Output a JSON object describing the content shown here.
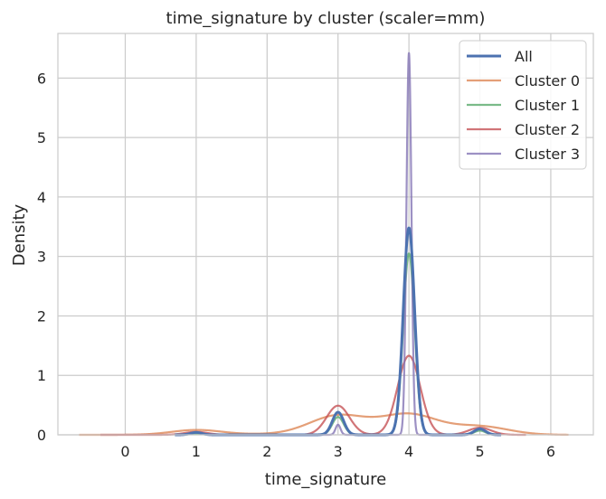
{
  "chart_data": {
    "type": "line",
    "title": "time_signature by cluster (scaler=mm)",
    "xlabel": "time_signature",
    "ylabel": "Density",
    "xlim": [
      -0.95,
      6.6
    ],
    "ylim": [
      0,
      6.75
    ],
    "xticks": [
      "0",
      "1",
      "2",
      "3",
      "4",
      "5",
      "6"
    ],
    "yticks": [
      "0",
      "1",
      "2",
      "3",
      "4",
      "5",
      "6"
    ],
    "grid": true,
    "legend_position": "top-right",
    "series": [
      {
        "name": "All",
        "color": "#4c72b0",
        "components": [
          {
            "mu": 1,
            "sigma": 0.08,
            "peak": 0.04
          },
          {
            "mu": 3,
            "sigma": 0.08,
            "peak": 0.38
          },
          {
            "mu": 4,
            "sigma": 0.08,
            "peak": 3.48
          },
          {
            "mu": 5,
            "sigma": 0.08,
            "peak": 0.1
          }
        ],
        "x_range": [
          0.7,
          5.3
        ]
      },
      {
        "name": "Cluster 0",
        "color": "#dd8452",
        "components": [
          {
            "mu": 1,
            "sigma": 0.35,
            "peak": 0.08
          },
          {
            "mu": 3,
            "sigma": 0.4,
            "peak": 0.32
          },
          {
            "mu": 4,
            "sigma": 0.4,
            "peak": 0.34
          },
          {
            "mu": 5,
            "sigma": 0.4,
            "peak": 0.14
          },
          {
            "mu": 2,
            "sigma": 0.6,
            "peak": 0.01
          }
        ],
        "x_range": [
          -0.65,
          6.25
        ]
      },
      {
        "name": "Cluster 1",
        "color": "#55a868",
        "components": [
          {
            "mu": 1,
            "sigma": 0.08,
            "peak": 0.02
          },
          {
            "mu": 3,
            "sigma": 0.08,
            "peak": 0.3
          },
          {
            "mu": 4,
            "sigma": 0.08,
            "peak": 3.05
          },
          {
            "mu": 5,
            "sigma": 0.08,
            "peak": 0.07
          }
        ],
        "x_range": [
          0.7,
          5.3
        ]
      },
      {
        "name": "Cluster 2",
        "color": "#c44e52",
        "components": [
          {
            "mu": 1,
            "sigma": 0.16,
            "peak": 0.05
          },
          {
            "mu": 3,
            "sigma": 0.16,
            "peak": 0.49
          },
          {
            "mu": 4,
            "sigma": 0.16,
            "peak": 1.33
          },
          {
            "mu": 5,
            "sigma": 0.16,
            "peak": 0.12
          }
        ],
        "x_range": [
          -0.35,
          5.65
        ]
      },
      {
        "name": "Cluster 3",
        "color": "#8172b3",
        "components": [
          {
            "mu": 3,
            "sigma": 0.035,
            "peak": 0.17
          },
          {
            "mu": 4,
            "sigma": 0.035,
            "peak": 6.42
          }
        ],
        "x_range": [
          2.7,
          4.3
        ]
      }
    ]
  }
}
